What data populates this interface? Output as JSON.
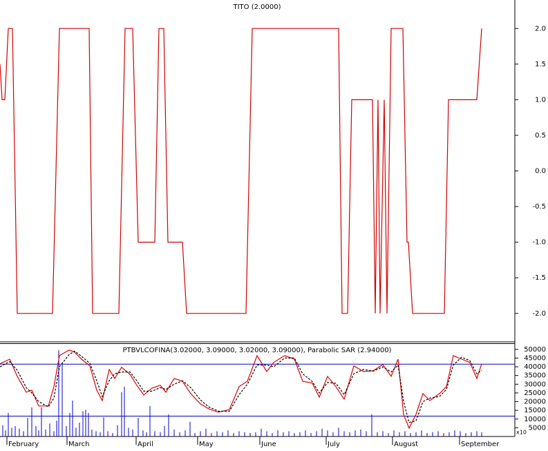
{
  "chart_data": [
    {
      "type": "line",
      "title": "TITO (2.0000)",
      "xlim": [
        0,
        745
      ],
      "ylim": [
        -2.4,
        2.4
      ],
      "yticks": [
        {
          "value": 2,
          "label": "2.0"
        },
        {
          "value": 1.5,
          "label": "1.5"
        },
        {
          "value": 1,
          "label": "1.0"
        },
        {
          "value": 0.5,
          "label": "0.5"
        },
        {
          "value": 0,
          "label": "0.0"
        },
        {
          "value": -0.5,
          "label": "-0.5"
        },
        {
          "value": -1,
          "label": "-1.0"
        },
        {
          "value": -1.5,
          "label": "-1.5"
        },
        {
          "value": -2,
          "label": "-2.0"
        }
      ],
      "series": [
        {
          "color": "#d00000",
          "x": [
            0,
            3,
            7,
            12,
            18,
            25,
            76,
            86,
            129,
            134,
            172,
            181,
            192,
            200,
            224,
            230,
            237,
            243,
            264,
            270,
            356,
            365,
            490,
            495,
            503,
            509,
            539,
            543,
            547,
            550,
            556,
            560,
            566,
            583,
            589,
            591,
            597,
            643,
            649,
            690,
            697
          ],
          "values": [
            1.5,
            1,
            1,
            2,
            2,
            -2,
            -2,
            2,
            2,
            -2,
            -2,
            2,
            2,
            -1,
            -1,
            2,
            2,
            -1,
            -1,
            -2,
            -2,
            2,
            2,
            -2,
            -2,
            1,
            1,
            -2,
            1,
            -2,
            1,
            -2,
            2,
            2,
            -1,
            -1,
            -2,
            -2,
            1,
            1,
            2
          ]
        }
      ]
    },
    {
      "type": "combo",
      "title": "PTBVLCOFINA(3.02000, 3.09000, 3.02000, 3.09000), Parabolic SAR (2.94000)",
      "xlim": [
        0,
        745
      ],
      "ylim": [
        0,
        53500
      ],
      "yticks": [
        5000,
        10000,
        15000,
        20000,
        25000,
        30000,
        35000,
        40000,
        45000,
        50000
      ],
      "xticks": [
        {
          "value": 10,
          "label": "February"
        },
        {
          "value": 97,
          "label": "March"
        },
        {
          "value": 197,
          "label": "April"
        },
        {
          "value": 286,
          "label": "May"
        },
        {
          "value": 376,
          "label": "June"
        },
        {
          "value": 472,
          "label": "July"
        },
        {
          "value": 568,
          "label": "August"
        },
        {
          "value": 665,
          "label": "September"
        }
      ],
      "reference_lines": [
        41500,
        11700
      ],
      "reference_color": "#0000cc",
      "scale_note": "x10",
      "series": [
        {
          "kind": "bar",
          "color": "#0000cc",
          "x": [
            4,
            8,
            12,
            17,
            22,
            28,
            34,
            40,
            46,
            52,
            56,
            60,
            66,
            72,
            78,
            82,
            85,
            90,
            96,
            101,
            105,
            110,
            115,
            120,
            124,
            128,
            133,
            139,
            145,
            150,
            156,
            163,
            170,
            176,
            180,
            186,
            192,
            200,
            207,
            212,
            217,
            224,
            232,
            238,
            244,
            252,
            260,
            268,
            275,
            282,
            290,
            298,
            306,
            314,
            322,
            330,
            338,
            346,
            354,
            362,
            370,
            378,
            386,
            394,
            402,
            410,
            418,
            426,
            434,
            442,
            450,
            458,
            466,
            474,
            482,
            490,
            498,
            506,
            514,
            522,
            530,
            538,
            546,
            554,
            562,
            570,
            578,
            586,
            594,
            602,
            610,
            618,
            626,
            634,
            642,
            650,
            658,
            666,
            674,
            682,
            690,
            697
          ],
          "values": [
            6500,
            3500,
            13500,
            5000,
            6000,
            4500,
            3000,
            10700,
            16700,
            6000,
            3500,
            16700,
            4000,
            7500,
            3000,
            9000,
            49600,
            42500,
            6000,
            13500,
            20600,
            5000,
            8000,
            14500,
            15300,
            13500,
            4000,
            3000,
            2500,
            11000,
            3000,
            2000,
            6500,
            25400,
            28600,
            5000,
            4000,
            10700,
            3500,
            2500,
            17500,
            3000,
            2500,
            6000,
            12700,
            4000,
            2500,
            3500,
            8500,
            2000,
            3000,
            4500,
            2000,
            3000,
            2500,
            3500,
            2000,
            3000,
            2500,
            2000,
            2500,
            4500,
            3000,
            2000,
            3500,
            2500,
            3000,
            2000,
            2500,
            3500,
            2000,
            3000,
            4500,
            3500,
            2500,
            5000,
            3000,
            2500,
            3500,
            4000,
            3000,
            12700,
            2500,
            3000,
            2000,
            3500,
            2500,
            3000,
            2000,
            2500,
            3500,
            2000,
            2500,
            3000,
            2000,
            2500,
            3500,
            3000,
            2000,
            2500,
            3000,
            2500
          ]
        },
        {
          "kind": "line",
          "color": "#e00000",
          "x": [
            0,
            14,
            25,
            38,
            46,
            56,
            70,
            78,
            86,
            100,
            108,
            118,
            130,
            140,
            148,
            158,
            166,
            176,
            188,
            198,
            208,
            220,
            232,
            240,
            252,
            264,
            276,
            290,
            302,
            316,
            332,
            346,
            358,
            372,
            386,
            396,
            412,
            426,
            438,
            452,
            462,
            474,
            486,
            498,
            512,
            526,
            540,
            554,
            566,
            576,
            584,
            592,
            602,
            612,
            622,
            636,
            646,
            656,
            668,
            680,
            690,
            697
          ],
          "values": [
            41700,
            44400,
            34500,
            25400,
            26600,
            17500,
            17500,
            28600,
            46400,
            49600,
            48400,
            44400,
            40500,
            26600,
            20600,
            38500,
            33300,
            39700,
            35700,
            29400,
            23800,
            27800,
            29400,
            25400,
            33300,
            31700,
            24600,
            18700,
            15900,
            13900,
            15500,
            28600,
            31700,
            46400,
            37300,
            42500,
            46400,
            44400,
            31700,
            30600,
            22600,
            34500,
            28600,
            21400,
            40500,
            37300,
            37700,
            41300,
            34500,
            44400,
            12700,
            4800,
            12700,
            24600,
            20600,
            24600,
            28600,
            46400,
            44400,
            42500,
            33300,
            41700
          ]
        },
        {
          "kind": "line",
          "style": "dashed",
          "color": "#000000",
          "x": [
            0,
            14,
            25,
            38,
            46,
            56,
            70,
            78,
            86,
            100,
            108,
            118,
            130,
            140,
            148,
            158,
            166,
            176,
            188,
            198,
            208,
            220,
            232,
            240,
            252,
            264,
            276,
            290,
            302,
            316,
            332,
            346,
            358,
            372,
            386,
            396,
            412,
            426,
            438,
            452,
            462,
            474,
            486,
            498,
            512,
            526,
            540,
            554,
            566,
            576,
            584,
            592,
            602,
            612,
            622,
            636,
            646,
            656,
            668,
            680,
            690,
            697
          ],
          "values": [
            40000,
            43000,
            38000,
            28000,
            25000,
            20000,
            17000,
            22000,
            40000,
            47000,
            49000,
            46000,
            42000,
            32000,
            23000,
            32000,
            36000,
            37000,
            37000,
            32000,
            26000,
            26000,
            28000,
            27000,
            30000,
            32000,
            28000,
            21000,
            17000,
            14500,
            14500,
            24000,
            30000,
            41000,
            41000,
            40000,
            45000,
            45000,
            36000,
            31500,
            25000,
            31000,
            30500,
            24000,
            36000,
            38500,
            37500,
            40000,
            37000,
            41000,
            20000,
            8000,
            9000,
            20000,
            22000,
            23000,
            27000,
            41000,
            45500,
            43500,
            36000,
            38000
          ]
        }
      ]
    }
  ]
}
